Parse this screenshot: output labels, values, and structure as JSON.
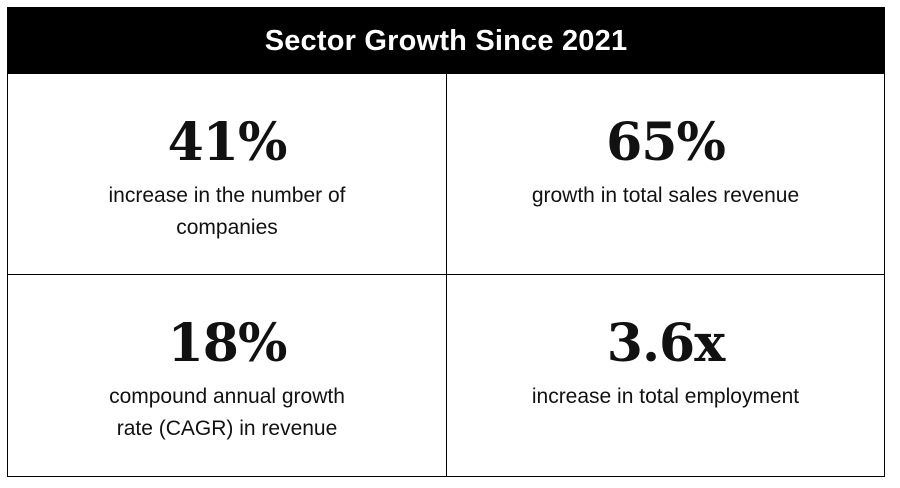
{
  "title": "Sector Growth Since 2021",
  "stats": [
    {
      "value": "41%",
      "description": "increase in the number of companies"
    },
    {
      "value": "65%",
      "description": "growth in total sales revenue"
    },
    {
      "value": "18%",
      "description": "compound annual growth rate (CAGR) in revenue"
    },
    {
      "value": "3.6x",
      "description": "increase in total employment"
    }
  ]
}
